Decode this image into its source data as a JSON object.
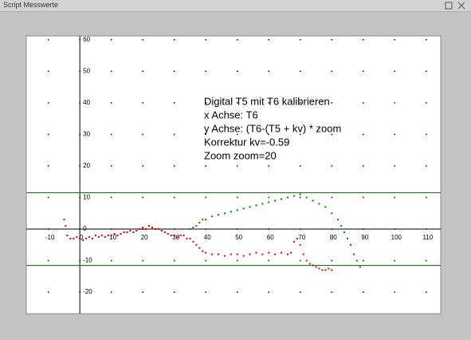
{
  "window": {
    "title": "Script Messwerte"
  },
  "chart_data": {
    "type": "scatter",
    "annotations": [
      "Digital T5 mit T6 kalibrieren",
      "x Achse: T6",
      "y Achse: (T6-(T5 + kv) * zoom",
      "Korrektur kv=-0.59",
      "Zoom  zoom=20"
    ],
    "xlim": [
      -17,
      114.6
    ],
    "ylim": [
      -26.8,
      61.2
    ],
    "xticks": [
      -10,
      0,
      10,
      20,
      30,
      40,
      50,
      60,
      70,
      80,
      90,
      100,
      110
    ],
    "yticks": [
      60,
      50,
      40,
      30,
      20,
      10,
      0,
      -10,
      -20
    ],
    "grid": true,
    "hlines": [
      11.5,
      -11.5
    ],
    "hline_color": "#008000",
    "series": [
      {
        "color": "#e00000",
        "x": [
          -5,
          -4.5,
          -4,
          -3,
          -2,
          -1,
          0,
          1,
          2,
          3,
          4,
          5,
          6,
          7,
          8,
          9,
          10,
          11,
          12,
          13,
          14,
          15,
          16,
          17,
          18,
          19,
          20,
          21,
          22,
          23,
          24,
          25,
          26,
          27,
          28,
          29,
          30,
          31,
          32,
          33,
          34,
          35,
          36,
          37,
          38,
          39,
          40,
          42,
          44,
          46,
          48,
          50,
          52,
          54,
          56,
          58,
          60,
          62,
          64,
          66,
          67,
          68,
          69,
          70,
          71,
          72,
          73,
          74,
          75,
          76,
          77,
          78,
          79,
          80
        ],
        "values": [
          3,
          1,
          -2,
          -3,
          -3,
          -2.5,
          -3,
          -3.5,
          -3,
          -2.5,
          -3,
          -2,
          -2.5,
          -2,
          -2.5,
          -2,
          -2,
          -1.5,
          -2,
          -1.5,
          -1,
          -1,
          -0.5,
          -1,
          -0.5,
          0,
          0.5,
          0,
          1,
          0.5,
          0,
          0,
          -0.5,
          -1,
          -1.5,
          -2,
          -2,
          -2.5,
          -2,
          -2,
          -3,
          -3,
          -4,
          -5,
          -6,
          -7,
          -7.5,
          -8,
          -8,
          -8.5,
          -8,
          -8,
          -8.5,
          -8,
          -7.5,
          -8,
          -7.5,
          -8,
          -7.5,
          -8,
          -7.5,
          -4,
          -3,
          -5,
          -8,
          -10,
          -11,
          -11.5,
          -12,
          -12.5,
          -13,
          -13,
          -12.5,
          -13
        ]
      },
      {
        "color": "#008000",
        "x": [
          35,
          36,
          37,
          38,
          39,
          40,
          42,
          44,
          46,
          48,
          50,
          52,
          54,
          56,
          58,
          60,
          62,
          64,
          66,
          68,
          70,
          72,
          74,
          76,
          78,
          80,
          82,
          83,
          84,
          85,
          86,
          87,
          88,
          89
        ],
        "values": [
          0,
          0.5,
          1,
          2,
          3,
          3,
          4,
          4.5,
          5,
          5.5,
          6,
          6.5,
          7,
          7.5,
          8,
          8.5,
          9,
          9.5,
          10,
          10.5,
          11,
          10,
          9,
          8,
          7,
          5,
          3,
          1,
          -1,
          -3,
          -5,
          -8,
          -10,
          -12
        ]
      }
    ]
  }
}
